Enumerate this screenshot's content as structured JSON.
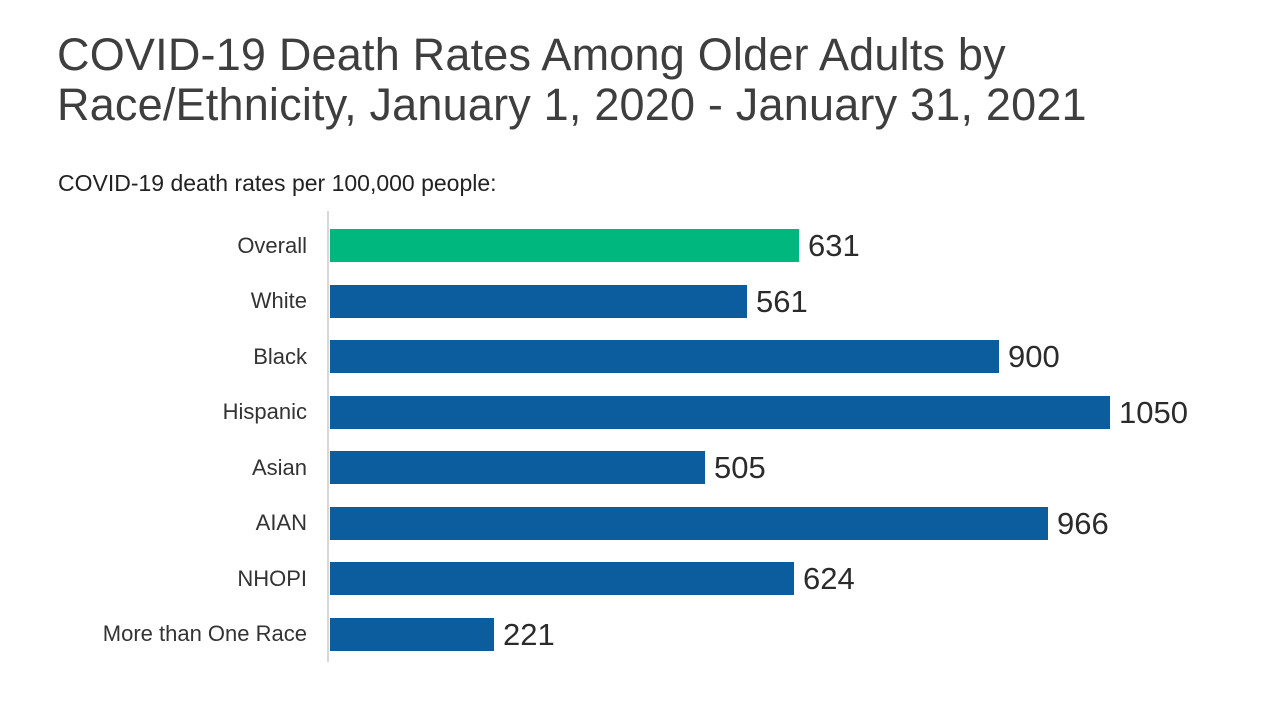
{
  "header": {
    "title_lines": [
      "COVID-19 Death Rates Among Older Adults by",
      "Race/Ethnicity, January 1, 2020 - January 31, 2021"
    ],
    "subtitle": "COVID-19 death rates per 100,000 people:"
  },
  "chart_data": {
    "type": "bar",
    "orientation": "horizontal",
    "title": "COVID-19 Death Rates Among Older Adults by Race/Ethnicity, January 1, 2020 - January 31, 2021",
    "xlabel": "COVID-19 death rates per 100,000 people",
    "ylabel": "Race/Ethnicity",
    "categories": [
      "Overall",
      "White",
      "Black",
      "Hispanic",
      "Asian",
      "AIAN",
      "NHOPI",
      "More than One Race"
    ],
    "values": [
      631,
      561,
      900,
      1050,
      505,
      966,
      624,
      221
    ],
    "xlim": [
      0,
      1050
    ],
    "grid": false,
    "legend": false,
    "data_labels": true,
    "highlight_index": 0,
    "colors": {
      "highlight_bar": "#00B77E",
      "bar": "#0C5D9E",
      "axis_line": "#D8D8D8",
      "title_text": "#3E3E3E",
      "subtitle_text": "#222222",
      "category_text": "#333333",
      "value_text": "#2B2B2B",
      "background": "#FFFFFF"
    }
  }
}
